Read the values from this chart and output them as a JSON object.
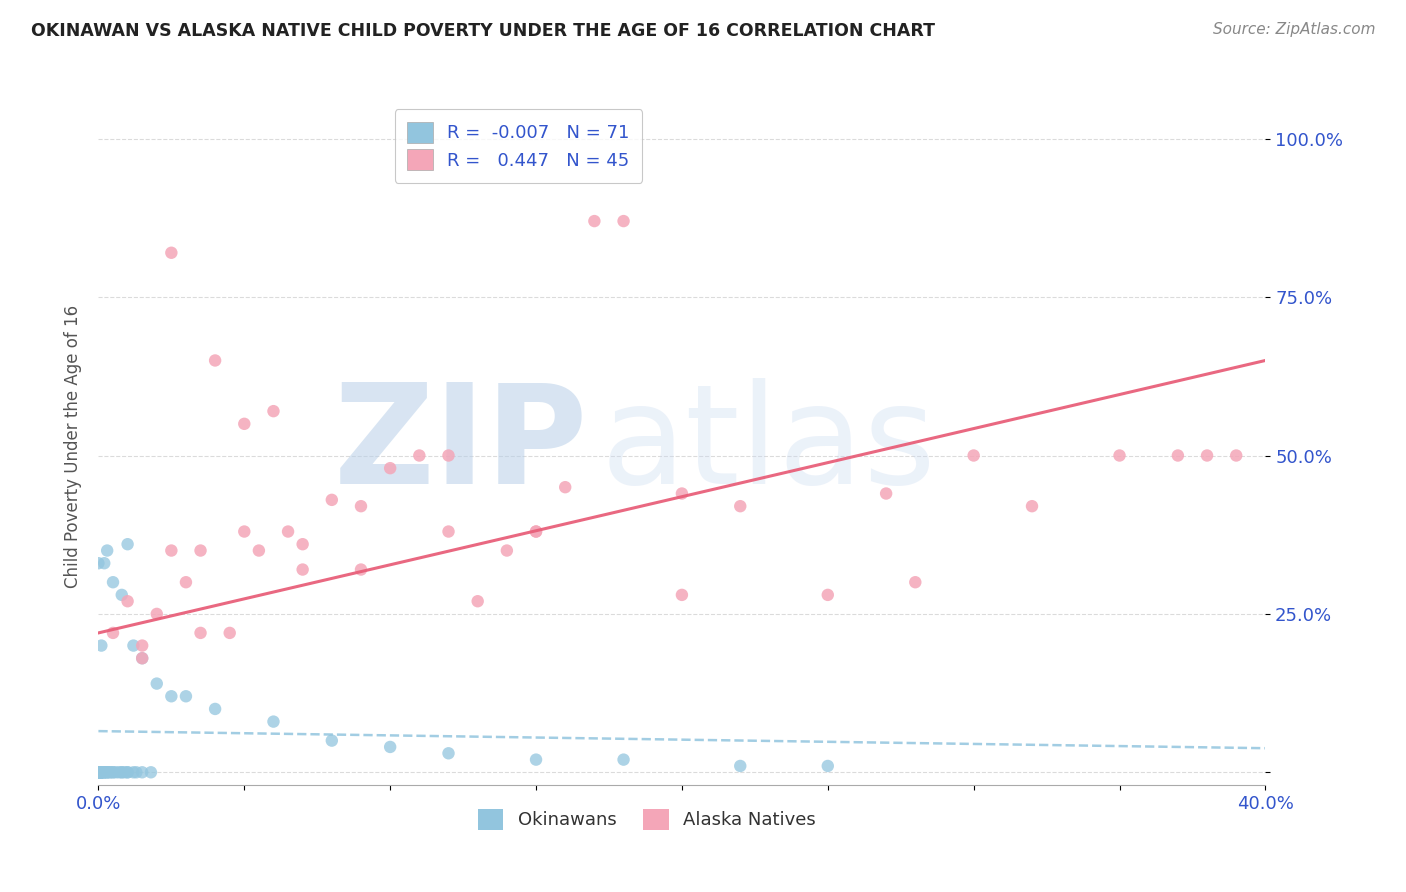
{
  "title": "OKINAWAN VS ALASKA NATIVE CHILD POVERTY UNDER THE AGE OF 16 CORRELATION CHART",
  "source": "Source: ZipAtlas.com",
  "ylabel": "Child Poverty Under the Age of 16",
  "xlim": [
    0.0,
    0.4
  ],
  "ylim": [
    -0.02,
    1.05
  ],
  "R_okinawan": -0.007,
  "N_okinawan": 71,
  "R_alaska": 0.447,
  "N_alaska": 45,
  "okinawan_color": "#92c5de",
  "alaska_color": "#f4a6b8",
  "okinawan_line_color": "#92c5de",
  "alaska_line_color": "#e8607a",
  "background_color": "#ffffff",
  "grid_color": "#cccccc",
  "watermark_zip": "ZIP",
  "watermark_atlas": "atlas",
  "title_color": "#222222",
  "source_color": "#888888",
  "tick_color": "#3355cc",
  "ylabel_color": "#555555",
  "alaska_x": [
    0.005,
    0.01,
    0.015,
    0.02,
    0.025,
    0.03,
    0.035,
    0.04,
    0.045,
    0.05,
    0.055,
    0.06,
    0.065,
    0.07,
    0.08,
    0.09,
    0.1,
    0.11,
    0.12,
    0.13,
    0.14,
    0.15,
    0.16,
    0.17,
    0.18,
    0.2,
    0.22,
    0.25,
    0.27,
    0.3,
    0.32,
    0.35,
    0.37,
    0.39,
    0.015,
    0.025,
    0.035,
    0.05,
    0.07,
    0.09,
    0.12,
    0.15,
    0.2,
    0.28,
    0.38
  ],
  "alaska_y": [
    0.22,
    0.27,
    0.2,
    0.25,
    0.82,
    0.3,
    0.35,
    0.65,
    0.22,
    0.55,
    0.35,
    0.57,
    0.38,
    0.36,
    0.43,
    0.42,
    0.48,
    0.5,
    0.5,
    0.27,
    0.35,
    0.38,
    0.45,
    0.87,
    0.87,
    0.28,
    0.42,
    0.28,
    0.44,
    0.5,
    0.42,
    0.5,
    0.5,
    0.5,
    0.18,
    0.35,
    0.22,
    0.38,
    0.32,
    0.32,
    0.38,
    0.38,
    0.44,
    0.3,
    0.5
  ],
  "ok_cluster_x": [
    0.0,
    0.0,
    0.0,
    0.0,
    0.0,
    0.0,
    0.0,
    0.0,
    0.0,
    0.0,
    0.0,
    0.0,
    0.0,
    0.0,
    0.0,
    0.0,
    0.0,
    0.0,
    0.0,
    0.0,
    0.001,
    0.001,
    0.001,
    0.001,
    0.001,
    0.001,
    0.001,
    0.001,
    0.002,
    0.002,
    0.002,
    0.002,
    0.003,
    0.003,
    0.003,
    0.004,
    0.004,
    0.005,
    0.005,
    0.006,
    0.007,
    0.008,
    0.008,
    0.009,
    0.01,
    0.01,
    0.012,
    0.013,
    0.015,
    0.018
  ],
  "ok_cluster_y": [
    0.0,
    0.0,
    0.0,
    0.0,
    0.0,
    0.0,
    0.0,
    0.0,
    0.0,
    0.0,
    0.0,
    0.0,
    0.0,
    0.0,
    0.0,
    0.0,
    0.0,
    0.0,
    0.0,
    0.0,
    0.0,
    0.0,
    0.0,
    0.0,
    0.0,
    0.0,
    0.0,
    0.0,
    0.0,
    0.0,
    0.0,
    0.0,
    0.0,
    0.0,
    0.0,
    0.0,
    0.0,
    0.0,
    0.0,
    0.0,
    0.0,
    0.0,
    0.0,
    0.0,
    0.0,
    0.0,
    0.0,
    0.0,
    0.0,
    0.0
  ],
  "ok_spread_x": [
    0.0,
    0.001,
    0.002,
    0.003,
    0.005,
    0.008,
    0.01,
    0.012,
    0.015,
    0.02,
    0.025,
    0.03,
    0.04,
    0.06,
    0.08,
    0.1,
    0.12,
    0.15,
    0.18,
    0.22,
    0.25
  ],
  "ok_spread_y": [
    0.33,
    0.2,
    0.33,
    0.35,
    0.3,
    0.28,
    0.36,
    0.2,
    0.18,
    0.14,
    0.12,
    0.12,
    0.1,
    0.08,
    0.05,
    0.04,
    0.03,
    0.02,
    0.02,
    0.01,
    0.01
  ],
  "alaska_line_x0": 0.0,
  "alaska_line_y0": 0.22,
  "alaska_line_x1": 0.4,
  "alaska_line_y1": 0.65,
  "okinawan_line_x0": 0.0,
  "okinawan_line_y0": 0.065,
  "okinawan_line_x1": 0.4,
  "okinawan_line_y1": 0.038
}
